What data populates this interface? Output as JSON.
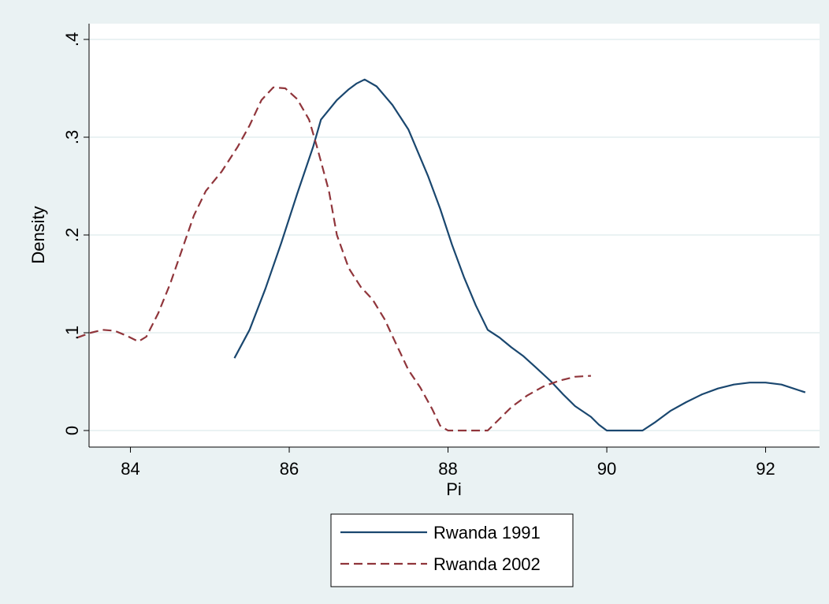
{
  "chart_data": {
    "type": "line",
    "xlabel": "Pi",
    "ylabel": "Density",
    "xlim": [
      83.3,
      92.6
    ],
    "ylim": [
      0,
      0.4
    ],
    "x_ticks": [
      84,
      86,
      88,
      90,
      92
    ],
    "x_tick_labels": [
      "84",
      "86",
      "88",
      "90",
      "92"
    ],
    "y_ticks": [
      0,
      0.1,
      0.2,
      0.3,
      0.4
    ],
    "y_tick_labels": [
      "0",
      ".1",
      ".2",
      ".3",
      ".4"
    ],
    "grid": "horizontal",
    "legend_position": "bottom",
    "colors": {
      "background": "#eaf2f3",
      "plot_area": "#ffffff",
      "grid": "#eaf2f3"
    },
    "series": [
      {
        "name": "Rwanda 1991",
        "color": "#1a476f",
        "dash": "solid",
        "points": [
          [
            85.31,
            0.074
          ],
          [
            85.5,
            0.103
          ],
          [
            85.7,
            0.145
          ],
          [
            85.9,
            0.192
          ],
          [
            86.1,
            0.242
          ],
          [
            86.3,
            0.29
          ],
          [
            86.4,
            0.318
          ],
          [
            86.6,
            0.338
          ],
          [
            86.75,
            0.349
          ],
          [
            86.85,
            0.355
          ],
          [
            86.95,
            0.359
          ],
          [
            87.1,
            0.352
          ],
          [
            87.3,
            0.333
          ],
          [
            87.5,
            0.308
          ],
          [
            87.75,
            0.26
          ],
          [
            87.9,
            0.227
          ],
          [
            88.05,
            0.19
          ],
          [
            88.2,
            0.157
          ],
          [
            88.35,
            0.128
          ],
          [
            88.5,
            0.103
          ],
          [
            88.65,
            0.095
          ],
          [
            88.8,
            0.085
          ],
          [
            88.95,
            0.076
          ],
          [
            89.1,
            0.065
          ],
          [
            89.3,
            0.05
          ],
          [
            89.45,
            0.037
          ],
          [
            89.6,
            0.025
          ],
          [
            89.8,
            0.014
          ],
          [
            89.9,
            0.006
          ],
          [
            90.0,
            0.0
          ],
          [
            90.45,
            0.0
          ],
          [
            90.6,
            0.008
          ],
          [
            90.8,
            0.02
          ],
          [
            91.0,
            0.029
          ],
          [
            91.2,
            0.037
          ],
          [
            91.4,
            0.043
          ],
          [
            91.6,
            0.047
          ],
          [
            91.8,
            0.049
          ],
          [
            92.0,
            0.049
          ],
          [
            92.2,
            0.047
          ],
          [
            92.5,
            0.039
          ]
        ]
      },
      {
        "name": "Rwanda 2002",
        "color": "#90353b",
        "dash": "dashed",
        "points": [
          [
            83.33,
            0.095
          ],
          [
            83.5,
            0.1
          ],
          [
            83.65,
            0.103
          ],
          [
            83.8,
            0.102
          ],
          [
            83.95,
            0.097
          ],
          [
            84.1,
            0.091
          ],
          [
            84.2,
            0.096
          ],
          [
            84.35,
            0.12
          ],
          [
            84.5,
            0.15
          ],
          [
            84.65,
            0.185
          ],
          [
            84.8,
            0.22
          ],
          [
            84.95,
            0.245
          ],
          [
            85.15,
            0.265
          ],
          [
            85.35,
            0.29
          ],
          [
            85.5,
            0.312
          ],
          [
            85.65,
            0.338
          ],
          [
            85.8,
            0.351
          ],
          [
            85.95,
            0.35
          ],
          [
            86.1,
            0.339
          ],
          [
            86.25,
            0.318
          ],
          [
            86.35,
            0.29
          ],
          [
            86.5,
            0.245
          ],
          [
            86.6,
            0.2
          ],
          [
            86.75,
            0.166
          ],
          [
            86.9,
            0.147
          ],
          [
            87.05,
            0.134
          ],
          [
            87.2,
            0.114
          ],
          [
            87.35,
            0.088
          ],
          [
            87.5,
            0.062
          ],
          [
            87.65,
            0.044
          ],
          [
            87.8,
            0.022
          ],
          [
            87.9,
            0.005
          ],
          [
            88.0,
            0.0
          ],
          [
            88.5,
            0.0
          ],
          [
            88.65,
            0.012
          ],
          [
            88.8,
            0.024
          ],
          [
            89.0,
            0.036
          ],
          [
            89.2,
            0.045
          ],
          [
            89.4,
            0.051
          ],
          [
            89.6,
            0.055
          ],
          [
            89.8,
            0.056
          ]
        ]
      }
    ]
  }
}
